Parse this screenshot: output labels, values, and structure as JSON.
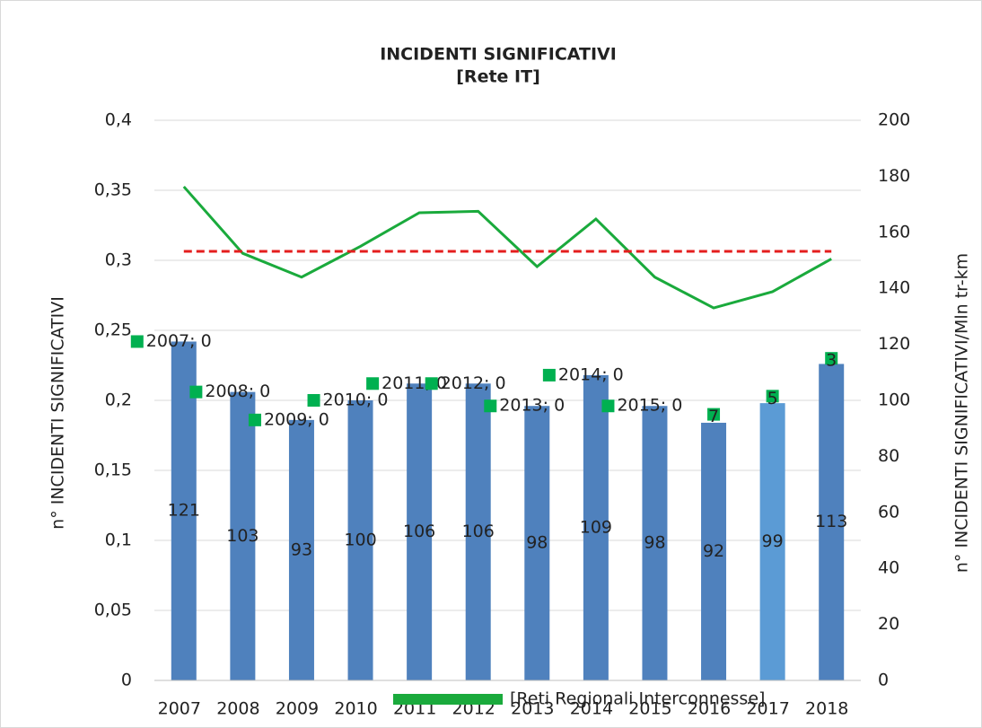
{
  "chart_data": {
    "type": "combo",
    "title": "INCIDENTI SIGNIFICATIVI",
    "subtitle": "[Rete IT]",
    "y_label": "n° INCIDENTI SIGNIFICATIVI",
    "y2_label": "n° INCIDENTI SIGNIFICATIVI/Mln tr-km",
    "categories": [
      "2007",
      "2008",
      "2009",
      "2010",
      "2011",
      "2012",
      "2013",
      "2014",
      "2015",
      "2016",
      "2017",
      "2018"
    ],
    "ylim": [
      0,
      0.4
    ],
    "yticks": [
      0,
      {
        "value": 0.05,
        "label": "0,05"
      },
      {
        "value": 0.1,
        "label": "0,1"
      },
      {
        "value": 0.15,
        "label": "0,15"
      },
      {
        "value": 0.2,
        "label": "0,2"
      },
      {
        "value": 0.25,
        "label": "0,25"
      },
      {
        "value": 0.3,
        "label": "0,3"
      },
      {
        "value": 0.35,
        "label": "0,35"
      },
      {
        "value": 0.4,
        "label": "0,4"
      }
    ],
    "y2lim": [
      0,
      200
    ],
    "y2ticks": [
      0,
      20,
      40,
      60,
      80,
      100,
      120,
      140,
      160,
      180,
      200
    ],
    "grid": true,
    "bars": {
      "axis": "y2",
      "colors": [
        "#4f81bd",
        "#4f81bd",
        "#4f81bd",
        "#4f81bd",
        "#4f81bd",
        "#4f81bd",
        "#4f81bd",
        "#4f81bd",
        "#4f81bd",
        "#4f81bd",
        "#5b9bd5",
        "#4f81bd"
      ],
      "values": [
        121,
        103,
        93,
        100,
        106,
        106,
        98,
        109,
        98,
        92,
        99,
        113
      ]
    },
    "markers": {
      "axis": "y2",
      "color": "#00b050",
      "values": [
        121,
        103,
        93,
        100,
        106,
        106,
        98,
        109,
        98,
        95,
        101.5,
        115
      ],
      "labels": [
        "2007; 0",
        "2008; 0",
        "2009; 0",
        "2010; 0",
        "2011; 0",
        "2012; 0",
        "2013; 0",
        "2014; 0",
        "2015; 0",
        "7",
        "5",
        "3"
      ]
    },
    "series": [
      {
        "name": "[Reti Regionali Interconnesse]",
        "color": "#1aaa3c",
        "values": [
          0.3526,
          0.305,
          0.288,
          0.31,
          0.334,
          0.335,
          0.2955,
          0.3295,
          0.288,
          0.266,
          0.2776,
          0.301
        ]
      },
      {
        "color": "#e41e1e",
        "dashed": true,
        "values": [
          0.3064,
          0.3064,
          0.3064,
          0.3064,
          0.3064,
          0.3064,
          0.3064,
          0.3064,
          0.3064,
          0.3064,
          0.3064,
          0.3064
        ]
      }
    ]
  }
}
